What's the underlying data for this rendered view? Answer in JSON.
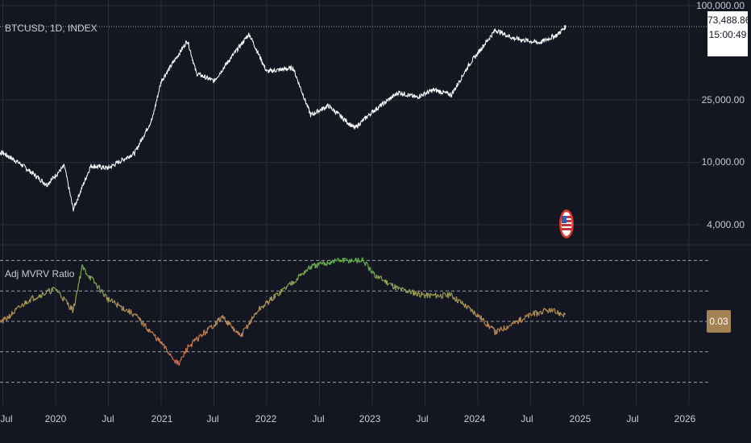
{
  "header": {
    "symbol_label": "BTCUSD, 1D, INDEX"
  },
  "price_pane": {
    "axis_labels": [
      "100,000.00",
      "25,000.00",
      "10,000.00",
      "4,000.00"
    ],
    "last_price": "73,488.86",
    "countdown": "15:00:49"
  },
  "indicator_pane": {
    "title": "Adj MVRV Ratio",
    "last_value": "0.03"
  },
  "x_axis": {
    "labels": [
      "Jul",
      "2020",
      "Jul",
      "2021",
      "Jul",
      "2022",
      "Jul",
      "2023",
      "Jul",
      "2024",
      "Jul",
      "2025",
      "Jul",
      "2026"
    ]
  },
  "colors": {
    "background": "#141722",
    "grid": "#2a2e39",
    "price_line": "#ffffff",
    "mvrv_high": "#62b04a",
    "mvrv_mid": "#a59a55",
    "mvrv_low": "#e06a4f",
    "marker_ring": "#e0352b"
  },
  "chart_data": [
    {
      "type": "line",
      "title": "BTCUSD, 1D, INDEX",
      "yscale": "log",
      "ylim": [
        3500,
        100000
      ],
      "x": [
        "2019-07",
        "2019-09",
        "2019-12",
        "2020-02",
        "2020-03",
        "2020-05",
        "2020-07",
        "2020-10",
        "2020-12",
        "2021-01",
        "2021-04",
        "2021-05",
        "2021-07",
        "2021-09",
        "2021-11",
        "2022-01",
        "2022-04",
        "2022-06",
        "2022-08",
        "2022-11",
        "2023-01",
        "2023-04",
        "2023-06",
        "2023-08",
        "2023-10",
        "2023-12",
        "2024-03",
        "2024-05",
        "2024-08",
        "2024-10",
        "2024-11"
      ],
      "series": [
        {
          "values": [
            11500,
            9800,
            7200,
            9500,
            5000,
            9500,
            9200,
            11500,
            19000,
            33000,
            60000,
            37000,
            33000,
            47000,
            66000,
            38000,
            40000,
            20000,
            23000,
            16500,
            21000,
            28000,
            26000,
            29000,
            27000,
            42000,
            70000,
            62000,
            58000,
            65000,
            73488.86
          ]
        }
      ]
    },
    {
      "type": "line",
      "title": "Adj MVRV Ratio",
      "x": [
        "2019-07",
        "2019-10",
        "2020-01",
        "2020-03",
        "2020-04",
        "2020-07",
        "2020-10",
        "2021-01",
        "2021-03",
        "2021-04",
        "2021-06",
        "2021-08",
        "2021-10",
        "2021-12",
        "2022-03",
        "2022-06",
        "2022-09",
        "2022-12",
        "2023-01",
        "2023-04",
        "2023-07",
        "2023-10",
        "2024-01",
        "2024-03",
        "2024-05",
        "2024-07",
        "2024-09",
        "2024-11"
      ],
      "series": [
        {
          "values": [
            0.0,
            0.1,
            0.15,
            0.05,
            0.25,
            0.1,
            0.03,
            -0.1,
            -0.2,
            -0.12,
            -0.05,
            0.02,
            -0.07,
            0.05,
            0.15,
            0.25,
            0.28,
            0.28,
            0.22,
            0.15,
            0.12,
            0.12,
            0.03,
            -0.05,
            -0.01,
            0.03,
            0.05,
            0.03
          ]
        }
      ]
    }
  ]
}
